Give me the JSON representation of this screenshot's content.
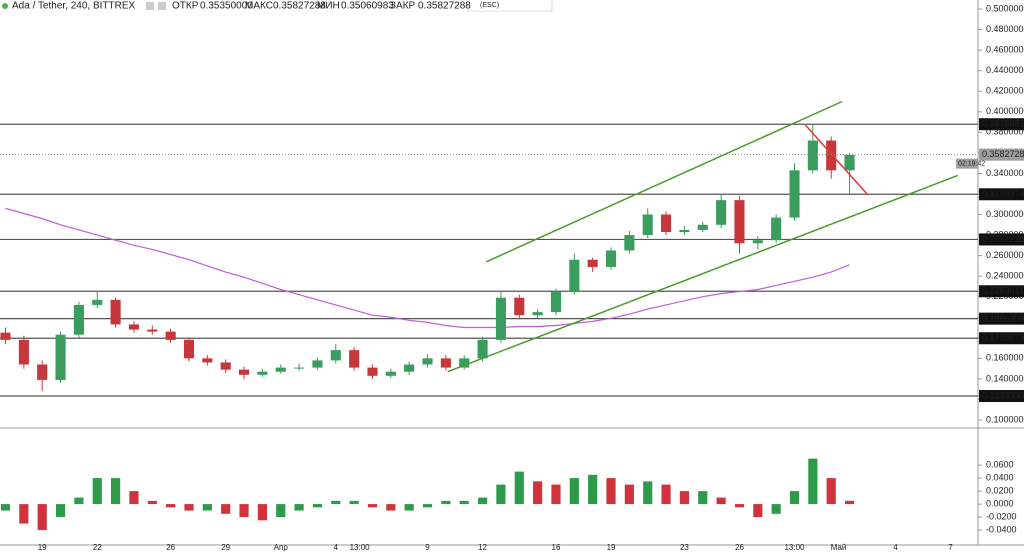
{
  "chart_data": [
    {
      "type": "candlestick",
      "title": "Ada / Tether, 240, BITTREX",
      "ohlc_labels": [
        "ОТКР",
        "МАКС",
        "МИН",
        "ЗАКР"
      ],
      "ohlc_values": [
        "0.35350000",
        "0.35827288",
        "0.35060983",
        "0.35827288"
      ],
      "hint": "(ESC)",
      "xlim": [
        -0.3,
        53
      ],
      "xticks": [
        {
          "value": 2,
          "label": "19"
        },
        {
          "value": 5,
          "label": "22"
        },
        {
          "value": 9,
          "label": "26"
        },
        {
          "value": 12,
          "label": "29"
        },
        {
          "value": 15,
          "label": "Апр"
        },
        {
          "value": 18,
          "label": "4"
        },
        {
          "value": 19.3,
          "label": "13:00"
        },
        {
          "value": 23,
          "label": "9"
        },
        {
          "value": 26,
          "label": "12"
        },
        {
          "value": 30,
          "label": "16"
        },
        {
          "value": 33,
          "label": "19"
        },
        {
          "value": 37,
          "label": "23"
        },
        {
          "value": 40,
          "label": "26"
        },
        {
          "value": 43,
          "label": "13:00"
        },
        {
          "value": 45.4,
          "label": "Май"
        },
        {
          "value": 48.5,
          "label": "4"
        },
        {
          "value": 51.5,
          "label": "7"
        }
      ],
      "ylim": [
        0.0922,
        0.5088
      ],
      "yticks": [
        {
          "value": 0.1,
          "label": "0.10000000"
        },
        {
          "value": 0.12,
          "label": "0.12000000"
        },
        {
          "value": 0.14,
          "label": "0.14000000"
        },
        {
          "value": 0.16,
          "label": "0.16000000"
        },
        {
          "value": 0.18,
          "label": "0.18000000"
        },
        {
          "value": 0.2,
          "label": "0.20000000"
        },
        {
          "value": 0.22,
          "label": "0.22000000"
        },
        {
          "value": 0.24,
          "label": "0.24000000"
        },
        {
          "value": 0.26,
          "label": "0.26000000"
        },
        {
          "value": 0.28,
          "label": "0.28000000"
        },
        {
          "value": 0.3,
          "label": "0.30000000"
        },
        {
          "value": 0.32,
          "label": "0.32000000"
        },
        {
          "value": 0.34,
          "label": "0.34000000"
        },
        {
          "value": 0.36,
          "label": "0.36000000"
        },
        {
          "value": 0.38,
          "label": "0.38000000"
        },
        {
          "value": 0.4,
          "label": "0.40000000"
        },
        {
          "value": 0.42,
          "label": "0.42000000"
        },
        {
          "value": 0.44,
          "label": "0.44000000"
        },
        {
          "value": 0.46,
          "label": "0.46000000"
        },
        {
          "value": 0.48,
          "label": "0.48000000"
        },
        {
          "value": 0.5,
          "label": "0.50000000"
        }
      ],
      "up_color": "#3a9d5d",
      "down_color": "#c6373c",
      "open": [
        0.185,
        0.178,
        0.154,
        0.139,
        0.183,
        0.212,
        0.217,
        0.193,
        0.188,
        0.186,
        0.178,
        0.16,
        0.156,
        0.149,
        0.144,
        0.147,
        0.151,
        0.151,
        0.158,
        0.168,
        0.151,
        0.143,
        0.147,
        0.154,
        0.16,
        0.151,
        0.16,
        0.178,
        0.219,
        0.202,
        0.205,
        0.225,
        0.256,
        0.249,
        0.265,
        0.28,
        0.3,
        0.283,
        0.285,
        0.29,
        0.314,
        0.272,
        0.275,
        0.297,
        0.343,
        0.372,
        0.343
      ],
      "high": [
        0.19,
        0.182,
        0.158,
        0.186,
        0.215,
        0.226,
        0.219,
        0.196,
        0.192,
        0.189,
        0.18,
        0.163,
        0.159,
        0.152,
        0.15,
        0.154,
        0.155,
        0.161,
        0.174,
        0.171,
        0.154,
        0.15,
        0.157,
        0.164,
        0.163,
        0.163,
        0.181,
        0.225,
        0.222,
        0.208,
        0.228,
        0.262,
        0.258,
        0.268,
        0.284,
        0.306,
        0.303,
        0.289,
        0.293,
        0.32,
        0.318,
        0.279,
        0.3,
        0.35,
        0.388,
        0.376,
        0.36
      ],
      "low": [
        0.174,
        0.15,
        0.128,
        0.136,
        0.18,
        0.209,
        0.19,
        0.185,
        0.183,
        0.175,
        0.157,
        0.153,
        0.146,
        0.14,
        0.142,
        0.145,
        0.148,
        0.149,
        0.155,
        0.148,
        0.14,
        0.141,
        0.144,
        0.151,
        0.148,
        0.149,
        0.157,
        0.175,
        0.198,
        0.199,
        0.202,
        0.222,
        0.244,
        0.246,
        0.262,
        0.277,
        0.28,
        0.28,
        0.283,
        0.287,
        0.262,
        0.266,
        0.272,
        0.294,
        0.34,
        0.335,
        0.32
      ],
      "close": [
        0.178,
        0.154,
        0.139,
        0.183,
        0.212,
        0.217,
        0.193,
        0.188,
        0.186,
        0.178,
        0.16,
        0.156,
        0.149,
        0.144,
        0.147,
        0.151,
        0.151,
        0.158,
        0.168,
        0.151,
        0.143,
        0.147,
        0.154,
        0.16,
        0.151,
        0.16,
        0.178,
        0.219,
        0.202,
        0.205,
        0.225,
        0.256,
        0.249,
        0.265,
        0.28,
        0.3,
        0.283,
        0.285,
        0.29,
        0.314,
        0.272,
        0.275,
        0.297,
        0.343,
        0.372,
        0.343,
        0.358
      ],
      "moving_average": {
        "color": "#c05cd8",
        "values": [
          0.306,
          0.301,
          0.296,
          0.29,
          0.285,
          0.28,
          0.275,
          0.27,
          0.266,
          0.261,
          0.256,
          0.25,
          0.244,
          0.239,
          0.233,
          0.227,
          0.222,
          0.217,
          0.212,
          0.207,
          0.202,
          0.2,
          0.197,
          0.195,
          0.192,
          0.19,
          0.19,
          0.19,
          0.191,
          0.191,
          0.192,
          0.194,
          0.196,
          0.199,
          0.203,
          0.208,
          0.212,
          0.216,
          0.22,
          0.223,
          0.225,
          0.227,
          0.231,
          0.235,
          0.239,
          0.244,
          0.251
        ]
      },
      "trendlines": [
        {
          "color": "#4a9a2a",
          "x": [
            26.2,
            45.6
          ],
          "y": [
            0.254,
            0.41
          ]
        },
        {
          "color": "#4a9a2a",
          "x": [
            24.1,
            51.9
          ],
          "y": [
            0.147,
            0.338
          ]
        },
        {
          "color": "#e53935",
          "x": [
            43.6,
            47.0
          ],
          "y": [
            0.387,
            0.319
          ]
        }
      ],
      "levels": [
        0.38788913,
        0.31969748,
        0.27572268,
        0.22530113,
        0.19863587,
        0.17955794,
        0.12333306
      ],
      "level_color": "#555555",
      "last_price": 0.35827288,
      "countdown": "02:19:42"
    },
    {
      "type": "histogram",
      "xlim": [
        -0.3,
        53
      ],
      "ylim": [
        -0.063,
        0.111
      ],
      "yticks": [
        {
          "value": 0.06,
          "label": "0.0600"
        },
        {
          "value": 0.04,
          "label": "0.0400"
        },
        {
          "value": 0.02,
          "label": "0.0200"
        },
        {
          "value": 0,
          "label": "0.0000"
        },
        {
          "value": -0.02,
          "label": "-0.0200"
        },
        {
          "value": -0.04,
          "label": "-0.0400"
        }
      ],
      "up_color": "#2e9b4a",
      "down_color": "#d0333c",
      "values": [
        -0.01,
        -0.03,
        -0.04,
        -0.02,
        0.01,
        0.04,
        0.04,
        0.02,
        0.005,
        -0.005,
        -0.01,
        -0.01,
        -0.015,
        -0.02,
        -0.025,
        -0.02,
        -0.01,
        -0.005,
        0.005,
        0.005,
        -0.005,
        -0.01,
        -0.01,
        -0.005,
        0.005,
        0.005,
        0.01,
        0.03,
        0.05,
        0.035,
        0.03,
        0.04,
        0.045,
        0.04,
        0.03,
        0.035,
        0.03,
        0.02,
        0.02,
        0.01,
        -0.005,
        -0.02,
        -0.015,
        0.02,
        0.07,
        0.04,
        0.005
      ]
    }
  ]
}
